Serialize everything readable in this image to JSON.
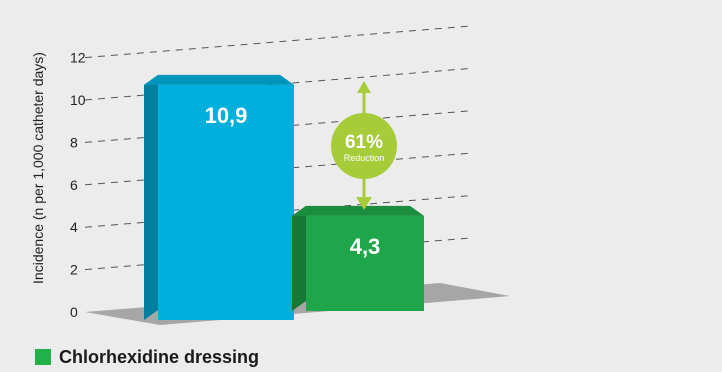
{
  "chart_data": {
    "type": "bar",
    "ylabel": "Incidence (n per 1,000 catheter days)",
    "ylim": [
      0,
      12
    ],
    "yticks": [
      0,
      2,
      4,
      6,
      8,
      10,
      12
    ],
    "grid": true,
    "categories": [
      "",
      ""
    ],
    "values": [
      10.9,
      4.3
    ],
    "value_labels": [
      "10,9",
      "4,3"
    ],
    "colors": [
      "#00b0dc",
      "#1fa64a"
    ],
    "annotation": {
      "percent": "61%",
      "text": "Reduction",
      "color": "#a7cc3a"
    },
    "legend": {
      "position": "bottom-left",
      "entries": [
        {
          "label": "Chlorhexidine dressing",
          "color": "#22b04b"
        }
      ]
    }
  }
}
